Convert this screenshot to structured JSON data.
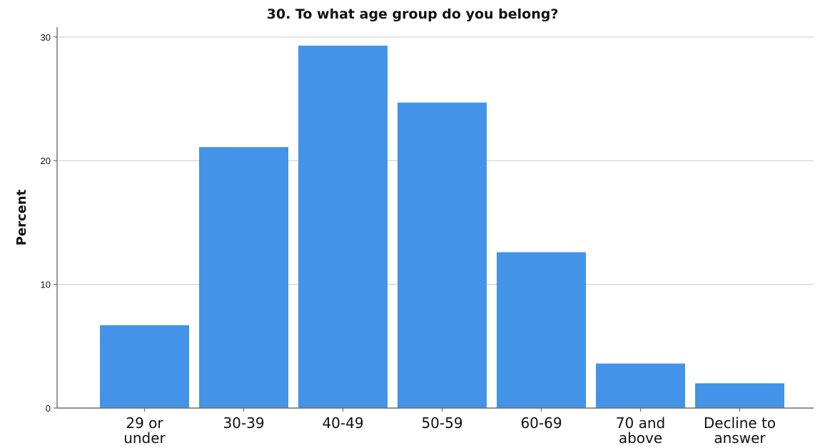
{
  "chart_data": {
    "type": "bar",
    "title": "30. To what age group do you belong?",
    "xlabel": "",
    "ylabel": "Percent",
    "categories": [
      [
        "29 or",
        "under"
      ],
      [
        "30-39"
      ],
      [
        "40-49"
      ],
      [
        "50-59"
      ],
      [
        "60-69"
      ],
      [
        "70 and",
        "above"
      ],
      [
        "Decline to",
        "answer"
      ]
    ],
    "values": [
      6.7,
      21.1,
      29.3,
      24.7,
      12.6,
      3.6,
      2.0
    ],
    "yticks": [
      0,
      10,
      20,
      30
    ],
    "ylim": [
      0,
      30.8
    ],
    "grid": true,
    "bar_color": "#4394e8"
  }
}
